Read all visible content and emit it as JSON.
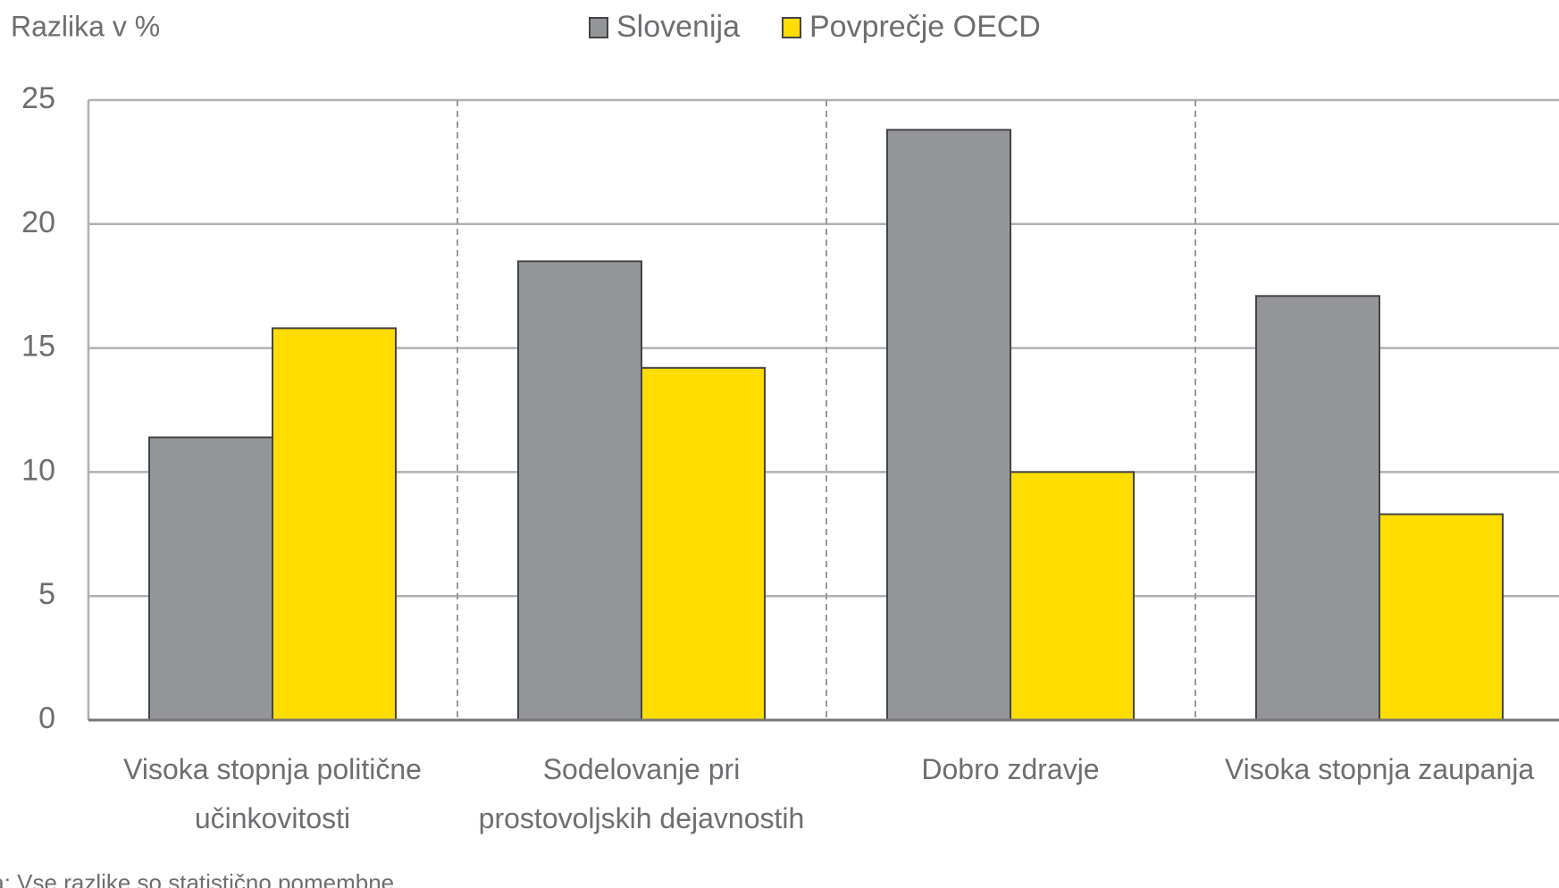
{
  "chart_data": {
    "type": "bar",
    "y_axis_label": "Razlika v %",
    "note": "Opomba: Vse razlike so statistično pomembne.",
    "categories": [
      "Visoka stopnja politične učinkovitosti",
      "Sodelovanje pri prostovoljskih dejavnostih",
      "Dobro zdravje",
      "Visoka stopnja zaupanja"
    ],
    "series": [
      {
        "name": "Slovenija",
        "color": "#939598",
        "values": [
          11.4,
          18.5,
          23.8,
          17.1
        ]
      },
      {
        "name": "Povprečje OECD",
        "color": "#ffdd00",
        "values": [
          15.8,
          14.2,
          10.0,
          8.3
        ]
      }
    ],
    "ylim": [
      0,
      25
    ],
    "yticks": [
      0,
      5,
      10,
      15,
      20,
      25
    ],
    "grid": true,
    "legend": "top"
  }
}
